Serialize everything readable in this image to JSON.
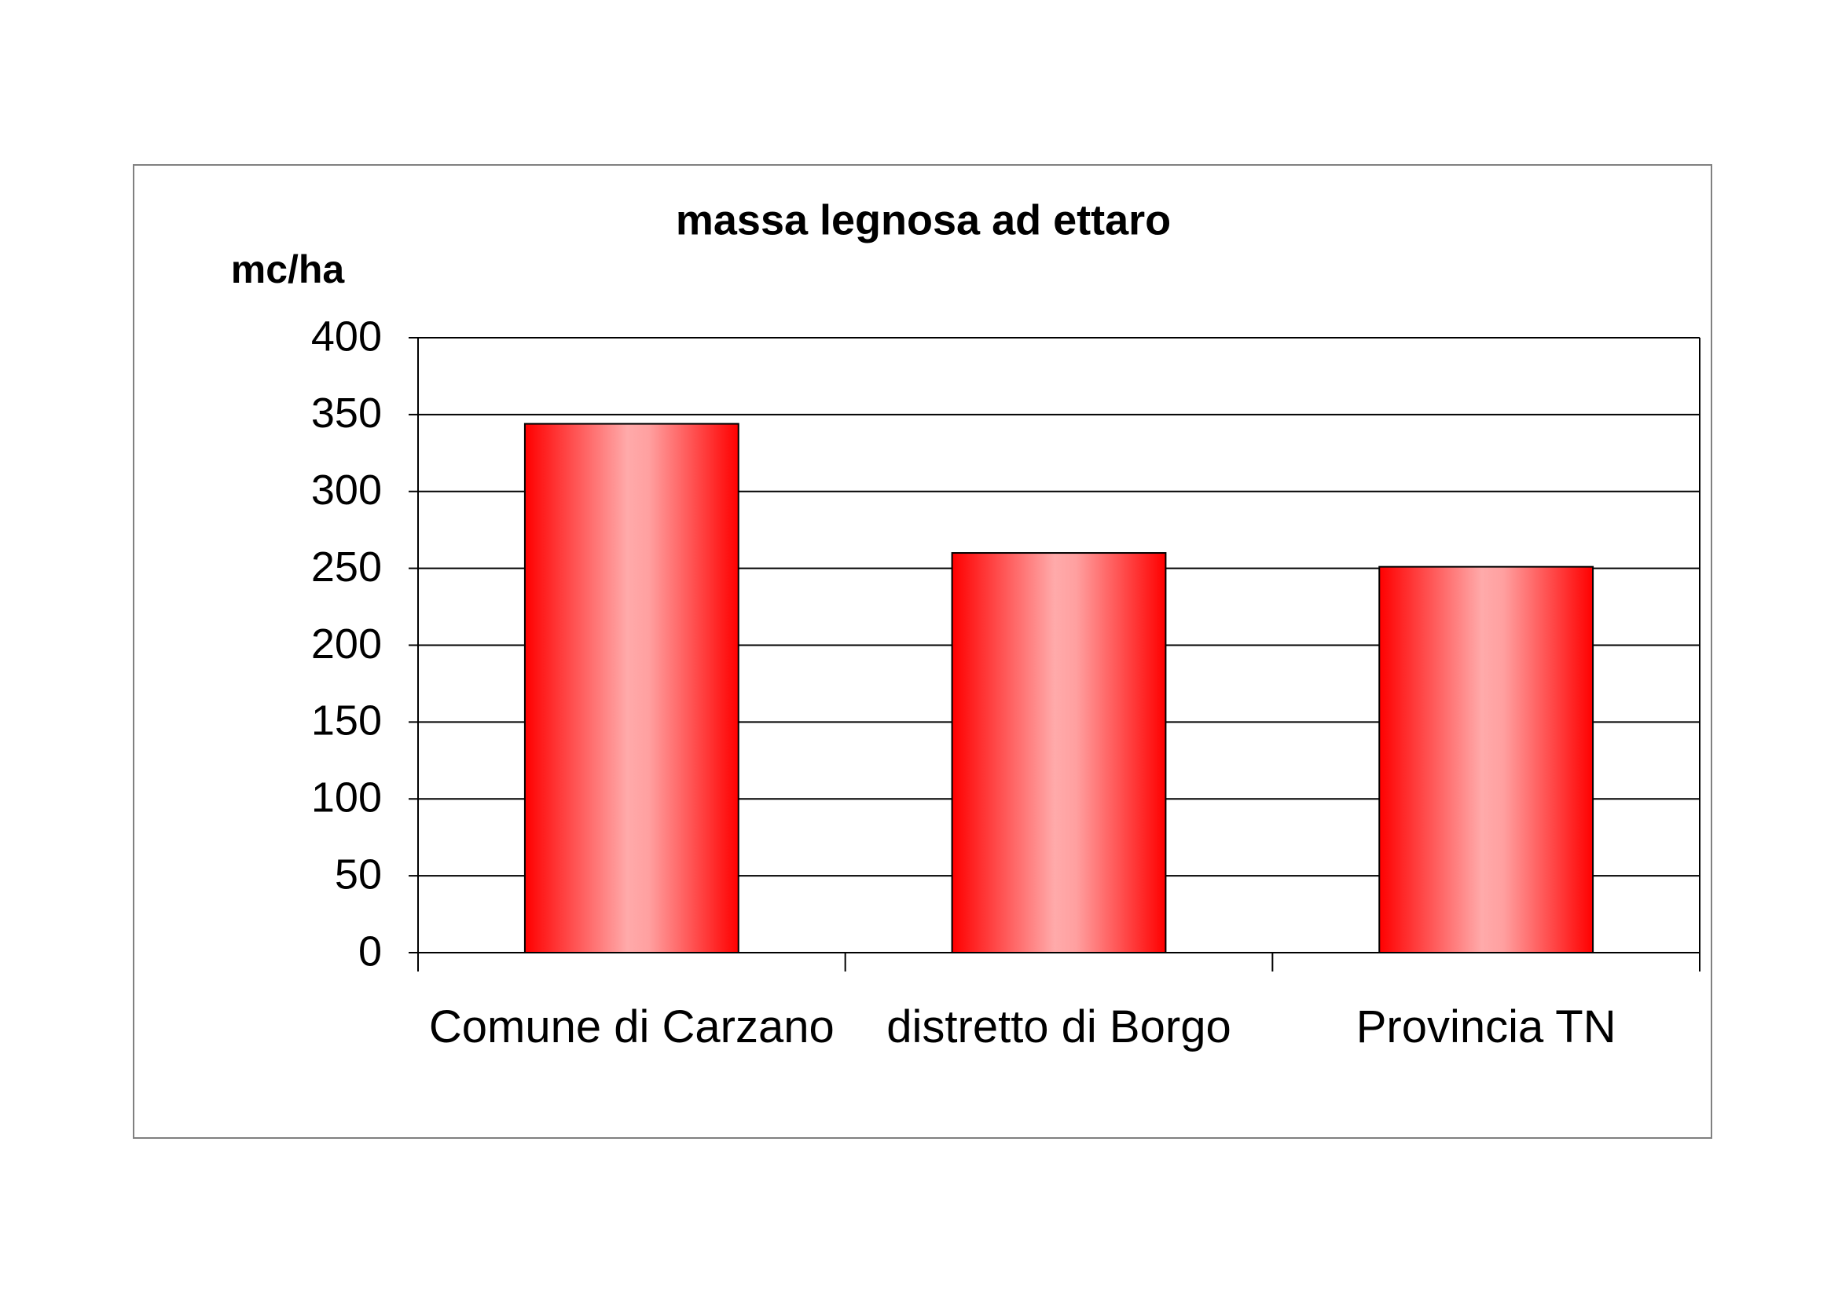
{
  "chart_data": {
    "type": "bar",
    "title": "massa legnosa ad ettaro",
    "y_label": "mc/ha",
    "categories": [
      "Comune di Carzano",
      "distretto di Borgo",
      "Provincia TN"
    ],
    "values": [
      344,
      260,
      251
    ],
    "color": "#ff0000",
    "ylim": [
      0,
      400
    ],
    "yticks": [
      0,
      50,
      100,
      150,
      200,
      250,
      300,
      350,
      400
    ],
    "grid": true
  }
}
